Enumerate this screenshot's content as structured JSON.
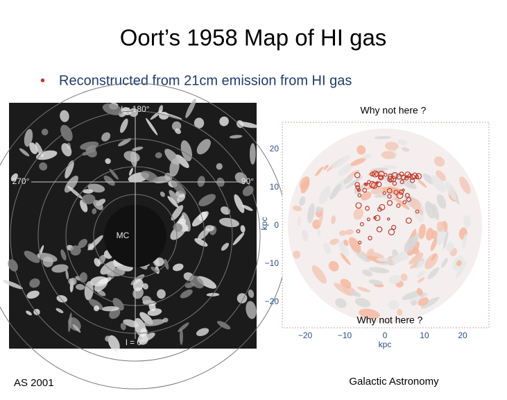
{
  "title": "Oort’s 1958 Map of HI gas",
  "bullets": [
    "Reconstructed from 21cm emission from HI gas"
  ],
  "left_image": {
    "labels": [
      "l = 180°",
      "270°",
      "90°",
      "MC",
      "l = 0°"
    ]
  },
  "right_image": {
    "annotations": [
      "Why not here ?",
      "Why not here ?"
    ],
    "x_label": "kpc",
    "y_label": "kpc",
    "xticks": [
      "−20",
      "−10",
      "0",
      "10",
      "20"
    ],
    "yticks": [
      "20",
      "10",
      "0",
      "−10",
      "−20"
    ]
  },
  "footer": {
    "left": "AS 2001",
    "right": "Galactic Astronomy"
  }
}
